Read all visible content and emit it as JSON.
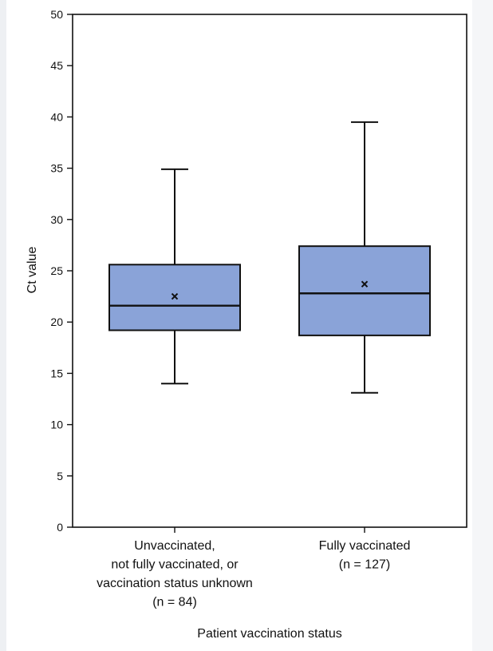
{
  "chart_data": {
    "type": "box",
    "title": "",
    "ylabel": "Ct value",
    "xlabel": "Patient vaccination status",
    "ylim": [
      0,
      50
    ],
    "yticks": [
      0,
      5,
      10,
      15,
      20,
      25,
      30,
      35,
      40,
      45,
      50
    ],
    "box_color": "#8aa3d8",
    "line_color": "#111111",
    "series": [
      {
        "name": "Unvaccinated, not fully vaccinated, or vaccination status unknown",
        "label_lines": [
          "Unvaccinated,",
          "not fully vaccinated, or",
          "vaccination status unknown",
          "(n = 84)"
        ],
        "n": 84,
        "min": 14.0,
        "q1": 19.2,
        "median": 21.6,
        "q3": 25.6,
        "max": 34.9,
        "mean": 22.5
      },
      {
        "name": "Fully vaccinated",
        "label_lines": [
          "Fully vaccinated",
          "(n = 127)"
        ],
        "n": 127,
        "min": 13.1,
        "q1": 18.7,
        "median": 22.8,
        "q3": 27.4,
        "max": 39.5,
        "mean": 23.7
      }
    ]
  }
}
